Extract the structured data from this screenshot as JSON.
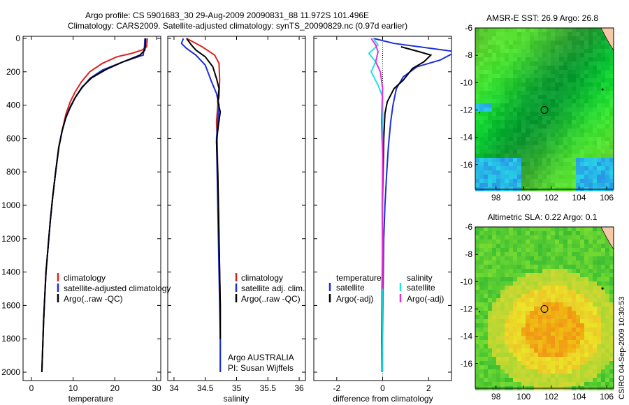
{
  "header": {
    "title_line1": "Argo profile: CS 5901683_30 29-Aug-2009 20090831_88 11.972S 101.496E",
    "title_line2": "Climatology: CARS2009. Satellite-adjusted climatology: synTS_20090829.nc (0.97d earlier)"
  },
  "footer": {
    "credit": "CSIRO 04-Sep-2009 10:30:53"
  },
  "colors": {
    "climatology": "#dd2222",
    "satellite_adjusted": "#1a2fd6",
    "argo": "#000000",
    "sat_salinity": "#22e0e8",
    "argo_adj_salinity": "#e030d8",
    "sst_map_base": "#3cb84a",
    "sla_map_base": "#e8c030",
    "land": "#f5c8a8"
  },
  "chart_data": [
    {
      "type": "line",
      "xlabel": "temperature",
      "xlim": [
        -2,
        31
      ],
      "ylim": [
        2080,
        0
      ],
      "x_ticks": [
        0,
        10,
        20,
        30
      ],
      "y_ticks": [
        0,
        200,
        400,
        600,
        800,
        1000,
        1200,
        1400,
        1600,
        1800,
        2000
      ],
      "x_tick_labels": [
        "0",
        "10",
        "20",
        "30"
      ],
      "y_tick_labels": [
        "0",
        "200",
        "400",
        "600",
        "800",
        "1000",
        "1200",
        "1400",
        "1600",
        "1800",
        "2000"
      ],
      "legend": [
        "climatology",
        "satellite-adjusted climatology",
        "Argo(..raw -QC)"
      ],
      "series": [
        {
          "name": "climatology",
          "color": "#dd2222",
          "x": [
            27.8,
            27.6,
            26.5,
            24.0,
            20.5,
            17.0,
            14.0,
            12.0,
            10.5,
            9.3,
            8.3,
            7.4,
            6.6,
            5.8,
            5.1,
            4.5,
            4.0,
            3.5,
            3.2,
            2.9,
            2.7,
            2.5
          ],
          "y": [
            0,
            50,
            70,
            90,
            110,
            150,
            200,
            260,
            320,
            380,
            450,
            550,
            650,
            800,
            950,
            1100,
            1250,
            1400,
            1550,
            1700,
            1850,
            2000
          ]
        },
        {
          "name": "satellite-adjusted climatology",
          "color": "#1a2fd6",
          "x": [
            27.2,
            27.1,
            26.9,
            26.8,
            22.0,
            17.0,
            14.0,
            12.0,
            10.4,
            9.2,
            8.2,
            7.3,
            6.5,
            5.8,
            5.1,
            4.5,
            4.0,
            3.5,
            3.2,
            2.9,
            2.7,
            2.5
          ],
          "y": [
            0,
            50,
            80,
            100,
            140,
            190,
            240,
            300,
            360,
            420,
            480,
            560,
            660,
            800,
            950,
            1100,
            1250,
            1400,
            1550,
            1700,
            1850,
            2000
          ]
        },
        {
          "name": "Argo(..raw -QC)",
          "color": "#000000",
          "x": [
            27.4,
            27.3,
            27.2,
            26.0,
            22.0,
            18.0,
            14.5,
            12.2,
            10.6,
            9.3,
            8.3,
            7.4,
            6.6,
            5.8,
            5.1,
            4.5,
            4.0,
            3.5,
            3.2,
            2.9,
            2.7,
            2.5
          ],
          "y": [
            0,
            40,
            70,
            100,
            140,
            185,
            235,
            290,
            350,
            410,
            470,
            550,
            650,
            800,
            950,
            1100,
            1250,
            1400,
            1550,
            1700,
            1850,
            2000
          ]
        }
      ]
    },
    {
      "type": "line",
      "xlabel": "salinity",
      "xlim": [
        33.9,
        36.1
      ],
      "ylim": [
        2080,
        0
      ],
      "x_ticks": [
        34,
        34.5,
        35,
        35.5,
        36
      ],
      "x_tick_labels": [
        "34",
        "34.5",
        "35",
        "35.5",
        "36"
      ],
      "legend": [
        "climatology",
        "satellite adj. clim.",
        "Argo(..raw -QC)"
      ],
      "annotation": [
        "Argo AUSTRALIA",
        "PI: Susan Wijffels"
      ],
      "series": [
        {
          "name": "climatology",
          "color": "#dd2222",
          "x": [
            34.2,
            34.3,
            34.45,
            34.65,
            34.72,
            34.73,
            34.72,
            34.7,
            34.68,
            34.69,
            34.7,
            34.71,
            34.72,
            34.73,
            34.74,
            34.74,
            34.74
          ],
          "y": [
            0,
            20,
            50,
            100,
            150,
            250,
            350,
            400,
            500,
            600,
            800,
            1000,
            1200,
            1400,
            1600,
            1800,
            2000
          ]
        },
        {
          "name": "satellite adj. clim.",
          "color": "#1a2fd6",
          "x": [
            34.15,
            34.12,
            34.2,
            34.35,
            34.5,
            34.6,
            34.68,
            34.72,
            34.7,
            34.68,
            34.69,
            34.7,
            34.71,
            34.72,
            34.73,
            34.74,
            34.74
          ],
          "y": [
            0,
            30,
            60,
            100,
            160,
            260,
            330,
            400,
            500,
            600,
            800,
            1000,
            1200,
            1400,
            1600,
            1800,
            2000
          ]
        },
        {
          "name": "Argo(..raw -QC)",
          "color": "#000000",
          "x": [
            34.2,
            34.28,
            34.35,
            34.5,
            34.62,
            34.68,
            34.72,
            34.7,
            34.74,
            34.71,
            34.68,
            34.7,
            34.71,
            34.72,
            34.73,
            34.74,
            34.74
          ],
          "y": [
            0,
            40,
            70,
            110,
            170,
            240,
            300,
            380,
            440,
            520,
            620,
            800,
            1000,
            1200,
            1400,
            1600,
            1800
          ]
        }
      ]
    },
    {
      "type": "line",
      "xlabel": "difference from climatology",
      "xlim": [
        -3,
        3
      ],
      "ylim": [
        2080,
        0
      ],
      "x_ticks": [
        -2,
        0,
        2
      ],
      "x_tick_labels": [
        "-2",
        "0",
        "2"
      ],
      "legend_temperature": [
        "temperature",
        "satellite",
        "Argo(-adj)"
      ],
      "legend_salinity": [
        "salinity",
        "satellite",
        "Argo(-adj)"
      ],
      "series": [
        {
          "name": "satellite",
          "color": "#1a2fd6",
          "x": [
            -0.4,
            0.5,
            3.2,
            2.5,
            1.5,
            0.9,
            0.6,
            0.45,
            0.35,
            0.25,
            0.18,
            0.1,
            0.05,
            0.02,
            0.0,
            0.0
          ],
          "y": [
            0,
            30,
            80,
            130,
            170,
            230,
            300,
            400,
            500,
            650,
            800,
            1000,
            1200,
            1500,
            1800,
            2000
          ]
        },
        {
          "name": "Argo(-adj)",
          "color": "#000000",
          "x": [
            0.8,
            1.6,
            2.1,
            1.8,
            1.3,
            0.9,
            0.5,
            0.2,
            0.1,
            0.05,
            0.02,
            0.0,
            0.0,
            -0.02,
            -0.03,
            -0.02
          ],
          "y": [
            50,
            80,
            100,
            140,
            180,
            250,
            300,
            380,
            450,
            600,
            800,
            1000,
            1200,
            1500,
            1800,
            2000
          ]
        },
        {
          "name": "satellite",
          "color": "#22e0e8",
          "x": [
            -0.4,
            -0.2,
            -0.6,
            -0.3,
            -0.5,
            -0.2,
            0.0,
            0.0,
            0.0,
            0.0
          ],
          "y": [
            0,
            40,
            90,
            140,
            200,
            280,
            350,
            500,
            800,
            2000
          ]
        },
        {
          "name": "Argo(-adj)",
          "color": "#e030d8",
          "x": [
            -0.5,
            -0.3,
            -0.2,
            -0.3,
            -0.1,
            0.0,
            -0.05,
            0.0,
            -0.02,
            0.0
          ],
          "y": [
            0,
            40,
            80,
            140,
            200,
            300,
            500,
            700,
            1000,
            1500
          ]
        }
      ]
    },
    {
      "type": "heatmap",
      "title": "AMSR-E SST: 26.9 Argo: 26.8",
      "xlim": [
        96.5,
        106.5
      ],
      "ylim": [
        -17.8,
        -6
      ],
      "x_ticks": [
        98,
        100,
        102,
        104,
        106
      ],
      "y_ticks": [
        -6,
        -8,
        -10,
        -12,
        -14,
        -16
      ],
      "x_tick_labels": [
        "98",
        "100",
        "102",
        "104",
        "106"
      ],
      "y_tick_labels": [
        "-6",
        "-8",
        "-10",
        "-12",
        "-14",
        "-16"
      ],
      "marker": [
        101.5,
        -12
      ]
    },
    {
      "type": "heatmap",
      "title": "Altimetric SLA: 0.22 Argo: 0.1",
      "xlim": [
        96.5,
        106.5
      ],
      "ylim": [
        -17.8,
        -6
      ],
      "x_ticks": [
        98,
        100,
        102,
        104,
        106
      ],
      "y_ticks": [
        -6,
        -8,
        -10,
        -12,
        -14,
        -16
      ],
      "x_tick_labels": [
        "98",
        "100",
        "102",
        "104",
        "106"
      ],
      "y_tick_labels": [
        "-6",
        "-8",
        "-10",
        "-12",
        "-14",
        "-16"
      ],
      "marker": [
        101.5,
        -12
      ]
    }
  ]
}
